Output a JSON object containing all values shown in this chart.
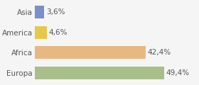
{
  "categories": [
    "Europa",
    "Africa",
    "America",
    "Asia"
  ],
  "values": [
    49.4,
    42.4,
    4.6,
    3.6
  ],
  "labels": [
    "49,4%",
    "42,4%",
    "4,6%",
    "3,6%"
  ],
  "bar_colors": [
    "#a8bf8a",
    "#e8b882",
    "#e8c84a",
    "#7b8fc8"
  ],
  "background_color": "#f5f5f5",
  "xlim": [
    0,
    62
  ],
  "bar_height": 0.62,
  "label_fontsize": 7.5,
  "category_fontsize": 7.5
}
